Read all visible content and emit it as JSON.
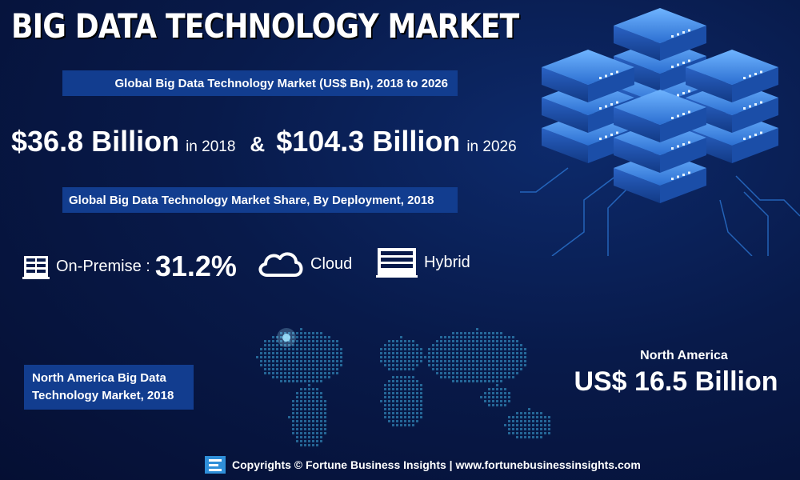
{
  "title": "BIG DATA TECHNOLOGY MARKET",
  "market_size_banner": "Global Big Data Technology Market (US$ Bn), 2018 to 2026",
  "values": {
    "value_2018": "$36.8 Billion",
    "year_2018": "in 2018",
    "ampersand": "&",
    "value_2026": "$104.3 Billion",
    "year_2026": "in 2026"
  },
  "share_banner": "Global Big Data Technology Market Share, By Deployment, 2018",
  "deployment": {
    "on_premise_label": "On-Premise :",
    "on_premise_value": "31.2%",
    "cloud_label": "Cloud",
    "hybrid_label": "Hybrid"
  },
  "regional_banner": {
    "line1": "North America Big Data",
    "line2": "Technology Market, 2018"
  },
  "north_america": {
    "title": "North America",
    "value": "US$ 16.5 Billion"
  },
  "footer": {
    "text": "Copyrights © Fortune Business Insights | www.fortunebusinessinsights.com"
  },
  "icons": [
    "server-rack-icon",
    "cloud-icon",
    "hybrid-server-icon",
    "fortune-logo-icon"
  ],
  "colors": {
    "background": "#081a4a",
    "banner": "#123d8f",
    "server_blue": "#2f7fe0"
  }
}
